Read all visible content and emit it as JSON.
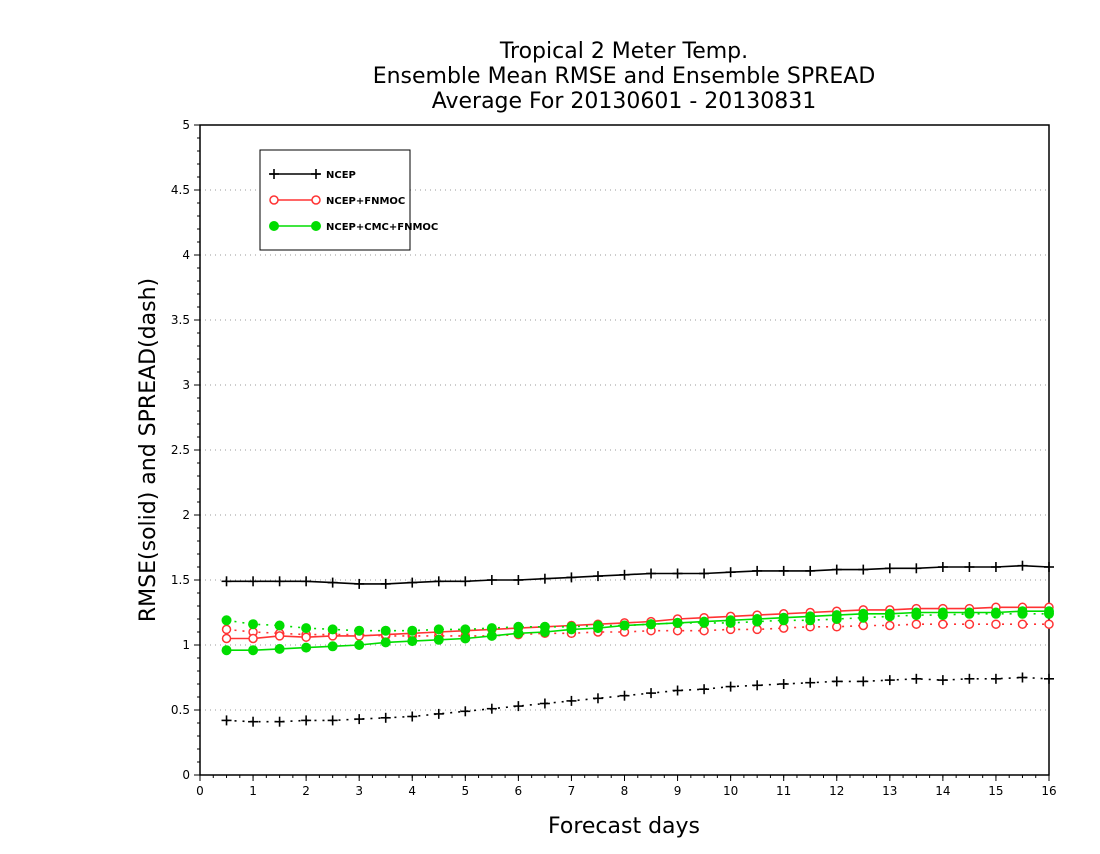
{
  "chart_data": {
    "type": "line",
    "title_lines": [
      "Tropical 2 Meter Temp.",
      "Ensemble Mean RMSE and Ensemble SPREAD",
      "Average For 20130601 - 20130831"
    ],
    "xlabel": "Forecast days",
    "ylabel": "RMSE(solid) and SPREAD(dash)",
    "xlim": [
      0,
      16
    ],
    "ylim": [
      0,
      5
    ],
    "x_ticks": [
      0,
      1,
      2,
      3,
      4,
      5,
      6,
      7,
      8,
      9,
      10,
      11,
      12,
      13,
      14,
      15,
      16
    ],
    "y_ticks": [
      0,
      0.5,
      1,
      1.5,
      2,
      2.5,
      3,
      3.5,
      4,
      4.5,
      5
    ],
    "y_tick_labels": [
      "0",
      "0.5",
      "1",
      "1.5",
      "2",
      "2.5",
      "3",
      "3.5",
      "4",
      "4.5",
      "5"
    ],
    "grid": "horizontal dotted",
    "legend_position": "top-left",
    "x": [
      0.5,
      1,
      1.5,
      2,
      2.5,
      3,
      3.5,
      4,
      4.5,
      5,
      5.5,
      6,
      6.5,
      7,
      7.5,
      8,
      8.5,
      9,
      9.5,
      10,
      10.5,
      11,
      11.5,
      12,
      12.5,
      13,
      13.5,
      14,
      14.5,
      15,
      15.5,
      16
    ],
    "series": [
      {
        "name": "NCEP",
        "color": "#000000",
        "marker": "plus",
        "rmse": [
          1.49,
          1.49,
          1.49,
          1.49,
          1.48,
          1.47,
          1.47,
          1.48,
          1.49,
          1.49,
          1.5,
          1.5,
          1.51,
          1.52,
          1.53,
          1.54,
          1.55,
          1.55,
          1.55,
          1.56,
          1.57,
          1.57,
          1.57,
          1.58,
          1.58,
          1.59,
          1.59,
          1.6,
          1.6,
          1.6,
          1.61,
          1.6
        ],
        "spread": [
          0.42,
          0.41,
          0.41,
          0.42,
          0.42,
          0.43,
          0.44,
          0.45,
          0.47,
          0.49,
          0.51,
          0.53,
          0.55,
          0.57,
          0.59,
          0.61,
          0.63,
          0.65,
          0.66,
          0.68,
          0.69,
          0.7,
          0.71,
          0.72,
          0.72,
          0.73,
          0.74,
          0.73,
          0.74,
          0.74,
          0.75,
          0.74
        ]
      },
      {
        "name": "NCEP+FNMOC",
        "color": "#ff3333",
        "marker": "open-circle",
        "rmse": [
          1.05,
          1.05,
          1.07,
          1.06,
          1.07,
          1.07,
          1.08,
          1.09,
          1.1,
          1.11,
          1.12,
          1.13,
          1.14,
          1.15,
          1.16,
          1.17,
          1.18,
          1.2,
          1.21,
          1.22,
          1.23,
          1.24,
          1.25,
          1.26,
          1.27,
          1.27,
          1.28,
          1.28,
          1.28,
          1.29,
          1.29,
          1.29
        ],
        "spread": [
          1.12,
          1.1,
          1.09,
          1.08,
          1.08,
          1.08,
          1.07,
          1.07,
          1.07,
          1.07,
          1.07,
          1.08,
          1.09,
          1.09,
          1.1,
          1.1,
          1.11,
          1.11,
          1.11,
          1.12,
          1.12,
          1.13,
          1.14,
          1.14,
          1.15,
          1.15,
          1.16,
          1.16,
          1.16,
          1.16,
          1.16,
          1.16
        ]
      },
      {
        "name": "NCEP+CMC+FNMOC",
        "color": "#00dd00",
        "marker": "filled-circle",
        "rmse": [
          0.96,
          0.96,
          0.97,
          0.98,
          0.99,
          1.0,
          1.02,
          1.03,
          1.04,
          1.05,
          1.07,
          1.09,
          1.1,
          1.12,
          1.13,
          1.15,
          1.16,
          1.17,
          1.18,
          1.19,
          1.2,
          1.21,
          1.22,
          1.23,
          1.24,
          1.24,
          1.25,
          1.25,
          1.25,
          1.25,
          1.26,
          1.26
        ],
        "spread": [
          1.19,
          1.16,
          1.15,
          1.13,
          1.12,
          1.11,
          1.11,
          1.11,
          1.12,
          1.12,
          1.13,
          1.14,
          1.14,
          1.14,
          1.15,
          1.15,
          1.16,
          1.17,
          1.17,
          1.17,
          1.18,
          1.19,
          1.19,
          1.2,
          1.21,
          1.22,
          1.23,
          1.23,
          1.24,
          1.24,
          1.24,
          1.24
        ]
      }
    ]
  }
}
